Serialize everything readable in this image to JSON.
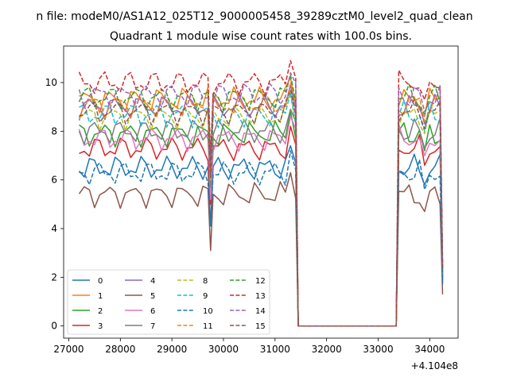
{
  "figure": {
    "suptitle": "n file: modeM0/AS1A12_025T12_9000005458_39289cztM0_level2_quad_clean"
  },
  "chart_data": {
    "type": "line",
    "title": "Quadrant 1 module wise count rates with 100.0s bins.",
    "xlabel": "",
    "ylabel": "",
    "x_offset_label": "+4.104e8",
    "x": [
      27200,
      27300,
      27400,
      27500,
      27600,
      27700,
      27800,
      27900,
      28000,
      28100,
      28200,
      28300,
      28400,
      28500,
      28600,
      28700,
      28800,
      28900,
      29000,
      29100,
      29200,
      29300,
      29400,
      29500,
      29600,
      29700,
      29800,
      29900,
      30000,
      30100,
      30200,
      30300,
      30400,
      30500,
      30600,
      30700,
      30800,
      30900,
      31000,
      31100,
      31200,
      31300,
      31400,
      31500,
      31600,
      31700,
      31800,
      31900,
      32000,
      32100,
      32200,
      32300,
      32400,
      32500,
      32600,
      32700,
      32800,
      32900,
      33000,
      33100,
      33200,
      33300,
      33400,
      33500,
      33600,
      33700,
      33800,
      33900,
      34000,
      34100,
      34200
    ],
    "xlim": [
      26900,
      34550
    ],
    "ylim": [
      -0.5,
      11.5
    ],
    "xticks": [
      27000,
      28000,
      29000,
      30000,
      31000,
      32000,
      33000,
      34000
    ],
    "yticks": [
      0,
      2,
      4,
      6,
      8,
      10
    ],
    "grid": false,
    "legend_position": "lower-left",
    "legend_columns": 4,
    "profile": {
      "gap_start_x": 31450,
      "gap_end_x": 33350,
      "dip_x": 29750,
      "notch_x": 33900,
      "high_a_end_x": 31300,
      "high_b_start_x": 33500,
      "high_b_end_x": 34200,
      "end_x": 34250
    },
    "series": [
      {
        "name": "0",
        "style": "solid",
        "color": "#1f77b4",
        "level": 6.5,
        "dip": 4.1,
        "end": 1.8
      },
      {
        "name": "1",
        "style": "solid",
        "color": "#ff7f0e",
        "level": 9.3,
        "dip": 6.4,
        "end": 2.2
      },
      {
        "name": "2",
        "style": "solid",
        "color": "#2ca02c",
        "level": 7.9,
        "dip": 5.4,
        "end": 2.0
      },
      {
        "name": "3",
        "style": "solid",
        "color": "#d62728",
        "level": 7.3,
        "dip": 5.0,
        "end": 1.9
      },
      {
        "name": "4",
        "style": "solid",
        "color": "#9467bd",
        "level": 9.0,
        "dip": 6.2,
        "end": 2.3
      },
      {
        "name": "5",
        "style": "solid",
        "color": "#8c564b",
        "level": 5.4,
        "dip": 3.1,
        "end": 1.3
      },
      {
        "name": "6",
        "style": "solid",
        "color": "#e377c2",
        "level": 7.7,
        "dip": 5.2,
        "end": 2.0
      },
      {
        "name": "7",
        "style": "solid",
        "color": "#7f7f7f",
        "level": 8.0,
        "dip": 5.7,
        "end": 2.1
      },
      {
        "name": "8",
        "style": "dashed",
        "color": "#bcbd22",
        "level": 8.6,
        "dip": 6.0,
        "end": 2.2
      },
      {
        "name": "9",
        "style": "dashed",
        "color": "#17becf",
        "level": 8.7,
        "dip": 6.1,
        "end": 2.2
      },
      {
        "name": "10",
        "style": "dashed",
        "color": "#1f77b4",
        "level": 6.3,
        "dip": 4.3,
        "end": 1.7
      },
      {
        "name": "11",
        "style": "dashed",
        "color": "#ff7f0e",
        "level": 9.1,
        "dip": 6.3,
        "end": 2.3
      },
      {
        "name": "12",
        "style": "dashed",
        "color": "#2ca02c",
        "level": 9.4,
        "dip": 6.5,
        "end": 2.4
      },
      {
        "name": "13",
        "style": "dashed",
        "color": "#d62728",
        "level": 10.0,
        "dip": 7.0,
        "end": 2.6
      },
      {
        "name": "14",
        "style": "dashed",
        "color": "#9467bd",
        "level": 9.5,
        "dip": 6.6,
        "end": 2.4
      },
      {
        "name": "15",
        "style": "dashed",
        "color": "#8c564b",
        "level": 8.8,
        "dip": 6.1,
        "end": 2.3
      }
    ]
  }
}
